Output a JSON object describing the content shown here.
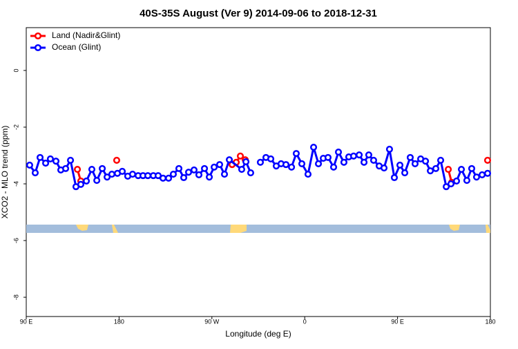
{
  "chart_data": {
    "type": "line",
    "title": "40S-35S August (Ver 9)   2014-09-06 to 2018-12-31",
    "x_label": "Longitude (deg E)",
    "y_label": "XCO2 - MLO trend (ppm)",
    "xlim": [
      90,
      540
    ],
    "ylim": [
      -8.68,
      1.51
    ],
    "xticks": [
      {
        "value": 90,
        "label": "90 E"
      },
      {
        "value": 180,
        "label": "180"
      },
      {
        "value": 270,
        "label": "90 W"
      },
      {
        "value": 360,
        "label": "0"
      },
      {
        "value": 450,
        "label": "90 E"
      },
      {
        "value": 540,
        "label": "180"
      }
    ],
    "yticks": [
      0,
      -2,
      -4,
      -6,
      -8
    ],
    "legend": "top-left",
    "series": [
      {
        "name": "Land (Nadir&Glint)",
        "color": "#ff0000",
        "x": [
          139.6,
          142.9,
          null,
          177.7,
          null,
          289.6,
          293.6,
          297.6,
          302.3,
          null,
          499.2,
          502.5,
          null,
          537.3
        ],
        "values": [
          -3.49,
          -3.9,
          null,
          -3.17,
          null,
          -3.32,
          -3.24,
          -3.02,
          -3.15,
          null,
          -3.49,
          -3.95,
          null,
          -3.17
        ]
      },
      {
        "name": "Ocean (Glint)",
        "color": "#0000ff",
        "x": [
          93.3,
          98.7,
          103.4,
          108.8,
          113.4,
          118.8,
          123.5,
          128.2,
          132.9,
          138.2,
          142.9,
          148.3,
          153.6,
          158.4,
          163.7,
          168.4,
          173.0,
          178.4,
          183.1,
          188.4,
          193.1,
          198.5,
          203.2,
          207.9,
          213.2,
          217.9,
          222.6,
          228.0,
          232.6,
          238.0,
          242.7,
          247.4,
          252.7,
          257.4,
          262.8,
          267.5,
          272.2,
          277.5,
          282.2,
          286.9,
          298.9,
          303.0,
          307.6,
          null,
          317.0,
          322.4,
          327.1,
          332.4,
          337.1,
          341.8,
          347.2,
          351.8,
          357.2,
          363.2,
          368.6,
          373.3,
          378.0,
          382.6,
          388.0,
          392.7,
          398.0,
          402.7,
          407.4,
          412.8,
          417.5,
          422.1,
          426.8,
          432.2,
          436.9,
          442.2,
          446.9,
          452.3,
          457.0,
          462.3,
          467.0,
          472.4,
          477.1,
          481.8,
          487.1,
          491.8,
          497.2,
          501.8,
          507.2,
          511.9,
          517.2,
          521.9,
          526.6,
          532.0,
          537.3
        ],
        "values": [
          -3.34,
          -3.61,
          -3.07,
          -3.27,
          -3.12,
          -3.2,
          -3.51,
          -3.46,
          -3.17,
          -4.1,
          -4.02,
          -3.9,
          -3.49,
          -3.88,
          -3.46,
          -3.76,
          -3.66,
          -3.63,
          -3.56,
          -3.73,
          -3.66,
          -3.71,
          -3.71,
          -3.71,
          -3.71,
          -3.71,
          -3.8,
          -3.8,
          -3.66,
          -3.46,
          -3.78,
          -3.59,
          -3.51,
          -3.68,
          -3.46,
          -3.76,
          -3.41,
          -3.32,
          -3.66,
          -3.15,
          -3.49,
          -3.22,
          -3.61,
          null,
          -3.24,
          -3.07,
          -3.12,
          -3.37,
          -3.29,
          -3.32,
          -3.41,
          -2.93,
          -3.29,
          -3.66,
          -2.71,
          -3.29,
          -3.1,
          -3.07,
          -3.41,
          -2.88,
          -3.24,
          -3.05,
          -3.02,
          -2.98,
          -3.24,
          -2.98,
          -3.17,
          -3.37,
          -3.44,
          -2.78,
          -3.78,
          -3.34,
          -3.61,
          -3.07,
          -3.29,
          -3.12,
          -3.2,
          -3.54,
          -3.46,
          -3.17,
          -4.1,
          -4.0,
          -3.9,
          -3.49,
          -3.88,
          -3.46,
          -3.76,
          -3.68,
          -3.63
        ]
      }
    ]
  }
}
